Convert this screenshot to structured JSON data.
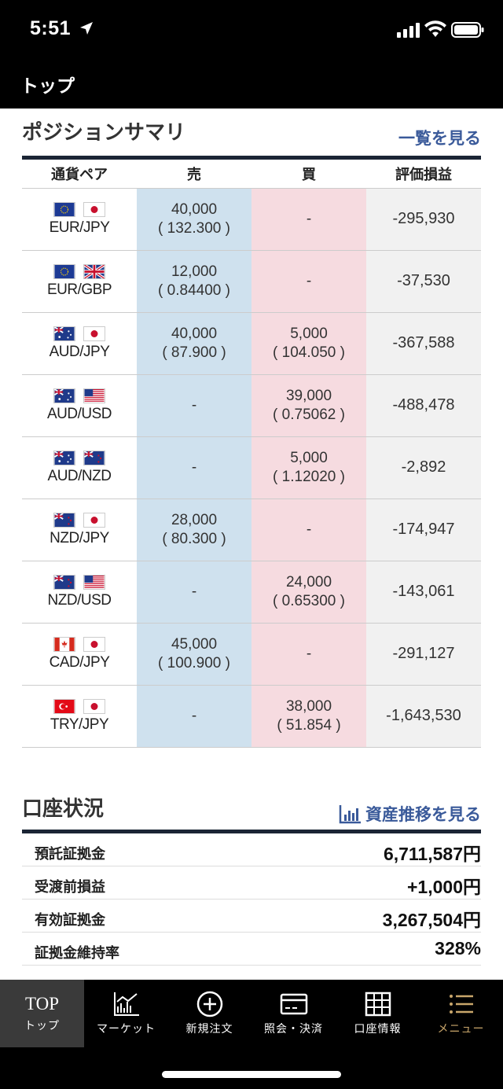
{
  "status": {
    "time": "5:51"
  },
  "nav": {
    "title": "トップ"
  },
  "positions": {
    "title": "ポジションサマリ",
    "link": "一覧を見る",
    "columns": [
      "通貨ペア",
      "売",
      "買",
      "評価損益"
    ],
    "rows": [
      {
        "pair": "EUR/JPY",
        "flags": [
          "eu",
          "jp"
        ],
        "sell_amt": "40,000",
        "sell_rate": "( 132.300 )",
        "buy_amt": "-",
        "buy_rate": "",
        "pl": "-295,930"
      },
      {
        "pair": "EUR/GBP",
        "flags": [
          "eu",
          "gb"
        ],
        "sell_amt": "12,000",
        "sell_rate": "( 0.84400 )",
        "buy_amt": "-",
        "buy_rate": "",
        "pl": "-37,530"
      },
      {
        "pair": "AUD/JPY",
        "flags": [
          "au",
          "jp"
        ],
        "sell_amt": "40,000",
        "sell_rate": "( 87.900 )",
        "buy_amt": "5,000",
        "buy_rate": "( 104.050 )",
        "pl": "-367,588"
      },
      {
        "pair": "AUD/USD",
        "flags": [
          "au",
          "us"
        ],
        "sell_amt": "-",
        "sell_rate": "",
        "buy_amt": "39,000",
        "buy_rate": "( 0.75062 )",
        "pl": "-488,478"
      },
      {
        "pair": "AUD/NZD",
        "flags": [
          "au",
          "nz"
        ],
        "sell_amt": "-",
        "sell_rate": "",
        "buy_amt": "5,000",
        "buy_rate": "( 1.12020 )",
        "pl": "-2,892"
      },
      {
        "pair": "NZD/JPY",
        "flags": [
          "nz",
          "jp"
        ],
        "sell_amt": "28,000",
        "sell_rate": "( 80.300 )",
        "buy_amt": "-",
        "buy_rate": "",
        "pl": "-174,947"
      },
      {
        "pair": "NZD/USD",
        "flags": [
          "nz",
          "us"
        ],
        "sell_amt": "-",
        "sell_rate": "",
        "buy_amt": "24,000",
        "buy_rate": "( 0.65300 )",
        "pl": "-143,061"
      },
      {
        "pair": "CAD/JPY",
        "flags": [
          "ca",
          "jp"
        ],
        "sell_amt": "45,000",
        "sell_rate": "( 100.900 )",
        "buy_amt": "-",
        "buy_rate": "",
        "pl": "-291,127"
      },
      {
        "pair": "TRY/JPY",
        "flags": [
          "tr",
          "jp"
        ],
        "sell_amt": "-",
        "sell_rate": "",
        "buy_amt": "38,000",
        "buy_rate": "( 51.854 )",
        "pl": "-1,643,530"
      }
    ]
  },
  "account": {
    "title": "口座状況",
    "link": "資産推移を見る",
    "rows": [
      {
        "label": "預託証拠金",
        "value": "6,711,587円"
      },
      {
        "label": "受渡前損益",
        "value": "+1,000円"
      },
      {
        "label": "有効証拠金",
        "value": "3,267,504円"
      },
      {
        "label": "証拠金維持率",
        "value": "328%"
      }
    ]
  },
  "tabs": [
    {
      "id": "top",
      "top_text": "TOP",
      "label": "トップ",
      "icon": "top-text"
    },
    {
      "id": "market",
      "label": "マーケット",
      "icon": "chart-line-icon"
    },
    {
      "id": "new-order",
      "label": "新規注文",
      "icon": "plus-circle-icon"
    },
    {
      "id": "inquiry",
      "label": "照会・決済",
      "icon": "card-icon"
    },
    {
      "id": "account",
      "label": "口座情報",
      "icon": "grid-icon"
    },
    {
      "id": "menu",
      "label": "メニュー",
      "icon": "menu-list-icon"
    }
  ],
  "colors": {
    "link": "#3a5a9a",
    "sell_bg": "#cfe1ee",
    "buy_bg": "#f6dbe0",
    "menu_accent": "#c9a66b"
  }
}
